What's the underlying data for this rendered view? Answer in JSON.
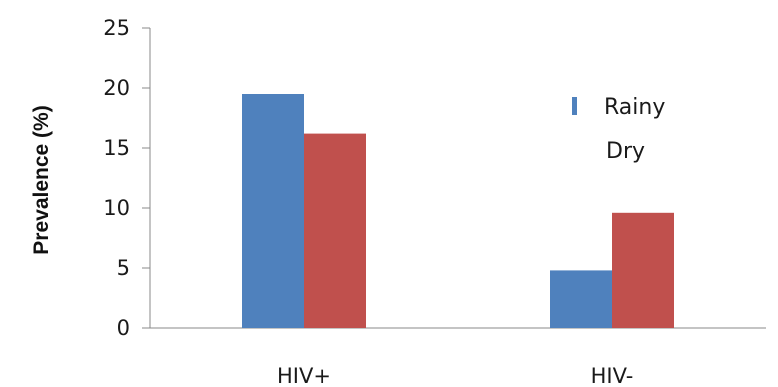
{
  "chart_data": {
    "type": "bar",
    "title": "",
    "xlabel": "",
    "ylabel": "Prevalence (%)",
    "categories": [
      "HIV+",
      "HIV-"
    ],
    "series": [
      {
        "name": "Rainy",
        "values": [
          19.5,
          4.8
        ],
        "color": "#4f81bd"
      },
      {
        "name": "Dry",
        "values": [
          16.2,
          9.6
        ],
        "color": "#c0504d"
      }
    ],
    "ylim": [
      0,
      25
    ],
    "yticks": [
      0,
      5,
      10,
      15,
      20,
      25
    ],
    "grid": false,
    "legend_position": "right"
  }
}
